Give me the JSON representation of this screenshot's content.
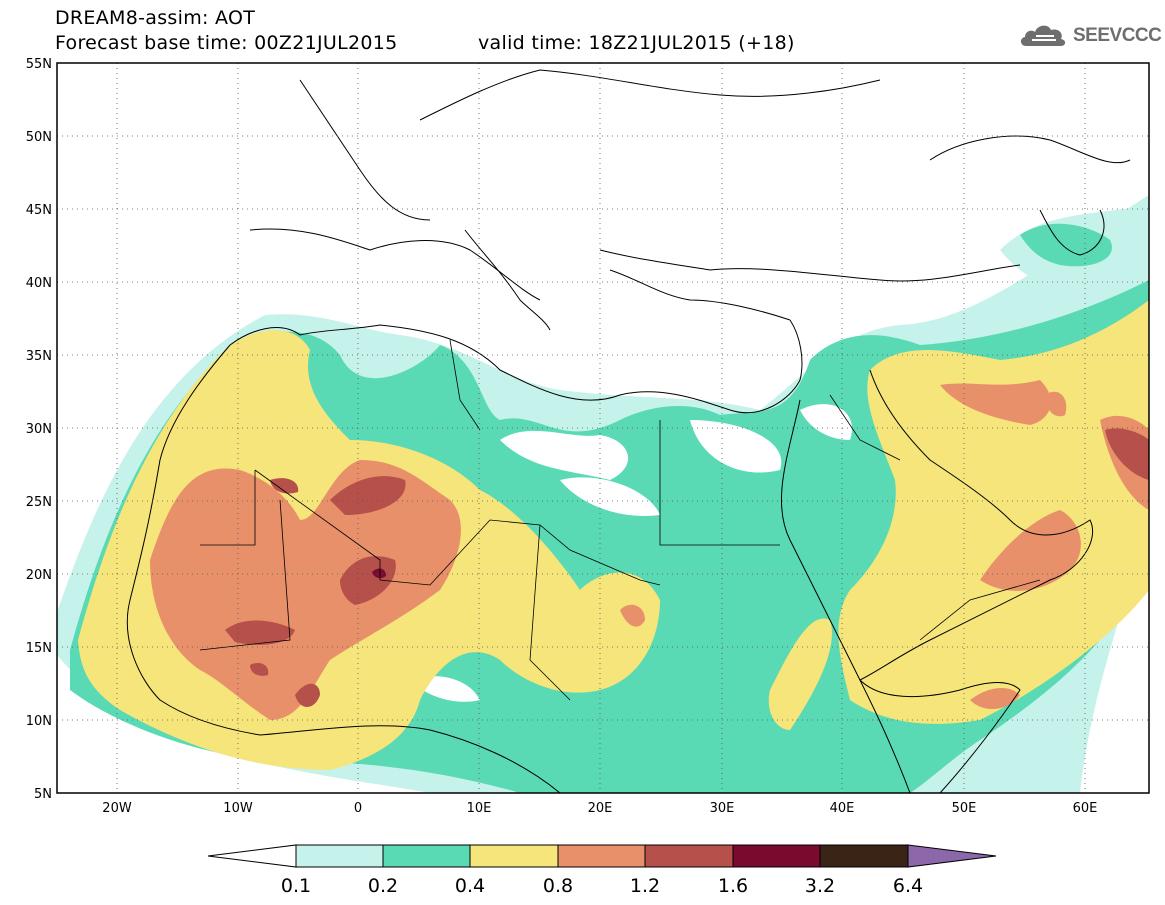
{
  "header": {
    "line1": "DREAM8-assim: AOT",
    "line2": "Forecast base time: 00Z21JUL2015",
    "valid": "valid time: 18Z21JUL2015 (+18)"
  },
  "logo": {
    "text": "SEEVCCC",
    "icon": "cloud-icon",
    "color": "#6e6e6e"
  },
  "axes": {
    "lon_ticks": [
      "20W",
      "10W",
      "0",
      "10E",
      "20E",
      "30E",
      "40E",
      "50E",
      "60E"
    ],
    "lat_ticks": [
      "55N",
      "50N",
      "45N",
      "40N",
      "35N",
      "30N",
      "25N",
      "20N",
      "15N",
      "10N",
      "5N"
    ],
    "lon_range": [
      -25,
      65
    ],
    "lat_range": [
      5,
      55
    ]
  },
  "colorbar": {
    "labels": [
      "0.1",
      "0.2",
      "0.4",
      "0.8",
      "1.2",
      "1.6",
      "3.2",
      "6.4"
    ],
    "colors": [
      "#c5f2ea",
      "#5ad9b5",
      "#f5e57a",
      "#e8906a",
      "#b5504b",
      "#7a0a2e",
      "#3a2416",
      "#8c68aa"
    ],
    "min_color": "#ffffff"
  }
}
